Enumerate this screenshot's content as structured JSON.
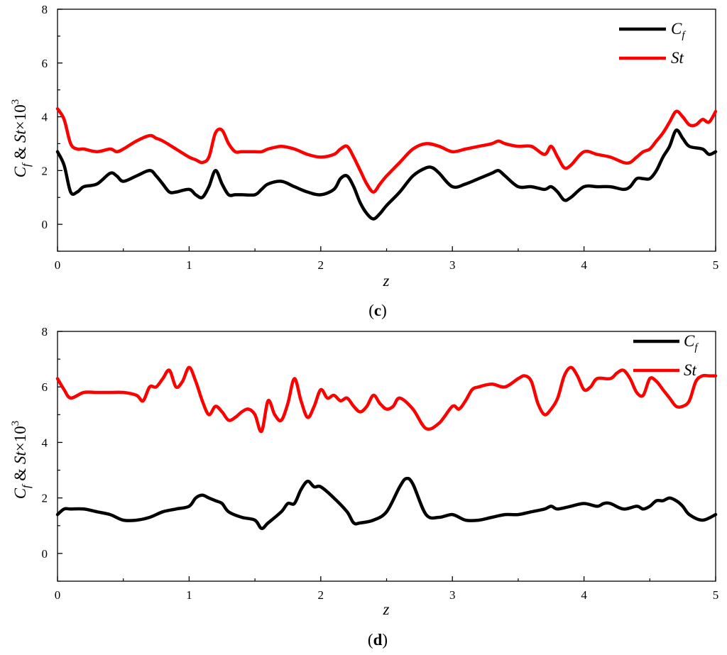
{
  "chart_data": [
    {
      "type": "line",
      "panel_label": {
        "open": "(",
        "letter": "c",
        "close": ")"
      },
      "xlabel": "z",
      "ylabel": {
        "a": "C",
        "a_sub": "f",
        "amp": " & ",
        "b": "St",
        "times": "×10",
        "exp": "3"
      },
      "xlim": [
        0,
        5
      ],
      "ylim": [
        -1,
        8
      ],
      "xticks": [
        0,
        1,
        2,
        3,
        4,
        5
      ],
      "yticks": [
        0,
        2,
        4,
        6,
        8
      ],
      "legend": {
        "placement": "top-right",
        "entries": [
          {
            "base": "C",
            "sub": "f",
            "color": "#000000"
          },
          {
            "base": "St",
            "sub": "",
            "color": "#ff0000"
          }
        ]
      },
      "series": [
        {
          "color": "#000000",
          "x": [
            0,
            0.05,
            0.1,
            0.15,
            0.2,
            0.3,
            0.4,
            0.45,
            0.5,
            0.6,
            0.7,
            0.75,
            0.8,
            0.85,
            0.9,
            1.0,
            1.05,
            1.1,
            1.15,
            1.2,
            1.25,
            1.3,
            1.35,
            1.4,
            1.5,
            1.55,
            1.6,
            1.7,
            1.8,
            1.9,
            2.0,
            2.1,
            2.15,
            2.2,
            2.25,
            2.3,
            2.35,
            2.4,
            2.45,
            2.5,
            2.6,
            2.7,
            2.8,
            2.85,
            2.9,
            3.0,
            3.1,
            3.2,
            3.3,
            3.35,
            3.4,
            3.5,
            3.6,
            3.7,
            3.75,
            3.8,
            3.85,
            3.9,
            4.0,
            4.1,
            4.2,
            4.3,
            4.35,
            4.4,
            4.45,
            4.5,
            4.55,
            4.6,
            4.65,
            4.7,
            4.75,
            4.8,
            4.9,
            4.95,
            5.0
          ],
          "y": [
            2.7,
            2.2,
            1.2,
            1.2,
            1.4,
            1.5,
            1.9,
            1.8,
            1.6,
            1.8,
            2.0,
            1.8,
            1.5,
            1.2,
            1.2,
            1.3,
            1.1,
            1.0,
            1.4,
            2.0,
            1.5,
            1.1,
            1.1,
            1.1,
            1.1,
            1.3,
            1.5,
            1.6,
            1.4,
            1.2,
            1.1,
            1.3,
            1.7,
            1.8,
            1.4,
            0.8,
            0.4,
            0.2,
            0.4,
            0.7,
            1.2,
            1.8,
            2.1,
            2.1,
            1.9,
            1.4,
            1.5,
            1.7,
            1.9,
            2.0,
            1.8,
            1.4,
            1.4,
            1.3,
            1.4,
            1.2,
            0.9,
            1.0,
            1.4,
            1.4,
            1.4,
            1.3,
            1.4,
            1.7,
            1.7,
            1.7,
            2.0,
            2.5,
            2.9,
            3.5,
            3.2,
            2.9,
            2.8,
            2.6,
            2.7
          ]
        },
        {
          "color": "#ff0000",
          "x": [
            0,
            0.05,
            0.1,
            0.15,
            0.2,
            0.3,
            0.4,
            0.45,
            0.5,
            0.6,
            0.7,
            0.75,
            0.8,
            0.9,
            1.0,
            1.05,
            1.1,
            1.15,
            1.2,
            1.25,
            1.3,
            1.35,
            1.4,
            1.5,
            1.55,
            1.6,
            1.7,
            1.8,
            1.9,
            2.0,
            2.1,
            2.15,
            2.2,
            2.25,
            2.3,
            2.35,
            2.4,
            2.45,
            2.5,
            2.6,
            2.7,
            2.8,
            2.9,
            3.0,
            3.1,
            3.2,
            3.3,
            3.35,
            3.4,
            3.5,
            3.6,
            3.7,
            3.75,
            3.8,
            3.85,
            3.9,
            4.0,
            4.1,
            4.2,
            4.3,
            4.35,
            4.4,
            4.45,
            4.5,
            4.55,
            4.6,
            4.65,
            4.7,
            4.75,
            4.8,
            4.85,
            4.9,
            4.95,
            5.0
          ],
          "y": [
            4.3,
            3.9,
            3.0,
            2.8,
            2.8,
            2.7,
            2.8,
            2.7,
            2.8,
            3.1,
            3.3,
            3.2,
            3.1,
            2.8,
            2.5,
            2.4,
            2.3,
            2.5,
            3.4,
            3.5,
            3.0,
            2.7,
            2.7,
            2.7,
            2.7,
            2.8,
            2.9,
            2.8,
            2.6,
            2.5,
            2.6,
            2.8,
            2.9,
            2.5,
            2.0,
            1.5,
            1.2,
            1.5,
            1.8,
            2.3,
            2.8,
            3.0,
            2.9,
            2.7,
            2.8,
            2.9,
            3.0,
            3.1,
            3.0,
            2.9,
            2.9,
            2.6,
            2.9,
            2.5,
            2.1,
            2.2,
            2.7,
            2.6,
            2.5,
            2.3,
            2.3,
            2.5,
            2.7,
            2.8,
            3.1,
            3.4,
            3.8,
            4.2,
            4.0,
            3.7,
            3.7,
            3.9,
            3.8,
            4.2
          ]
        }
      ]
    },
    {
      "type": "line",
      "panel_label": {
        "open": "(",
        "letter": "d",
        "close": ")"
      },
      "xlabel": "z",
      "ylabel": {
        "a": "C",
        "a_sub": "f",
        "amp": " & ",
        "b": "St",
        "times": "×10",
        "exp": "3"
      },
      "xlim": [
        0,
        5
      ],
      "ylim": [
        -1,
        8
      ],
      "xticks": [
        0,
        1,
        2,
        3,
        4,
        5
      ],
      "yticks": [
        0,
        2,
        4,
        6,
        8
      ],
      "legend": {
        "placement": "top-right",
        "entries": [
          {
            "base": "C",
            "sub": "f",
            "color": "#000000"
          },
          {
            "base": "St",
            "sub": "",
            "color": "#ff0000"
          }
        ]
      },
      "series": [
        {
          "color": "#000000",
          "x": [
            0,
            0.05,
            0.1,
            0.2,
            0.3,
            0.4,
            0.5,
            0.6,
            0.7,
            0.8,
            0.9,
            1.0,
            1.05,
            1.1,
            1.15,
            1.2,
            1.25,
            1.3,
            1.4,
            1.5,
            1.55,
            1.6,
            1.7,
            1.75,
            1.8,
            1.85,
            1.9,
            1.95,
            2.0,
            2.1,
            2.2,
            2.25,
            2.3,
            2.4,
            2.5,
            2.6,
            2.65,
            2.7,
            2.8,
            2.9,
            3.0,
            3.1,
            3.2,
            3.3,
            3.4,
            3.5,
            3.6,
            3.7,
            3.75,
            3.8,
            3.9,
            4.0,
            4.1,
            4.15,
            4.2,
            4.3,
            4.4,
            4.45,
            4.5,
            4.55,
            4.6,
            4.65,
            4.7,
            4.75,
            4.8,
            4.9,
            5.0
          ],
          "y": [
            1.4,
            1.6,
            1.6,
            1.6,
            1.5,
            1.4,
            1.2,
            1.2,
            1.3,
            1.5,
            1.6,
            1.7,
            2.0,
            2.1,
            2.0,
            1.9,
            1.8,
            1.5,
            1.3,
            1.2,
            0.9,
            1.1,
            1.5,
            1.8,
            1.8,
            2.3,
            2.6,
            2.4,
            2.4,
            2.0,
            1.5,
            1.1,
            1.1,
            1.2,
            1.5,
            2.4,
            2.7,
            2.5,
            1.4,
            1.3,
            1.4,
            1.2,
            1.2,
            1.3,
            1.4,
            1.4,
            1.5,
            1.6,
            1.7,
            1.6,
            1.7,
            1.8,
            1.7,
            1.8,
            1.8,
            1.6,
            1.7,
            1.6,
            1.7,
            1.9,
            1.9,
            2.0,
            1.9,
            1.7,
            1.4,
            1.2,
            1.4
          ]
        },
        {
          "color": "#ff0000",
          "x": [
            0,
            0.05,
            0.1,
            0.2,
            0.3,
            0.4,
            0.5,
            0.6,
            0.65,
            0.7,
            0.75,
            0.8,
            0.85,
            0.9,
            0.95,
            1.0,
            1.05,
            1.1,
            1.15,
            1.2,
            1.25,
            1.3,
            1.35,
            1.4,
            1.45,
            1.5,
            1.55,
            1.6,
            1.65,
            1.7,
            1.75,
            1.8,
            1.85,
            1.9,
            1.95,
            2.0,
            2.05,
            2.1,
            2.15,
            2.2,
            2.25,
            2.3,
            2.35,
            2.4,
            2.45,
            2.5,
            2.55,
            2.6,
            2.7,
            2.8,
            2.9,
            3.0,
            3.05,
            3.1,
            3.15,
            3.2,
            3.3,
            3.4,
            3.5,
            3.55,
            3.6,
            3.65,
            3.7,
            3.75,
            3.8,
            3.85,
            3.9,
            3.95,
            4.0,
            4.05,
            4.1,
            4.2,
            4.25,
            4.3,
            4.35,
            4.4,
            4.45,
            4.5,
            4.55,
            4.6,
            4.65,
            4.7,
            4.75,
            4.8,
            4.85,
            4.9,
            4.95,
            5.0
          ],
          "y": [
            6.3,
            5.9,
            5.6,
            5.8,
            5.8,
            5.8,
            5.8,
            5.7,
            5.5,
            6.0,
            6.0,
            6.3,
            6.6,
            6.0,
            6.2,
            6.7,
            6.2,
            5.5,
            5.0,
            5.3,
            5.1,
            4.8,
            4.9,
            5.1,
            5.2,
            5.0,
            4.4,
            5.5,
            5.0,
            4.8,
            5.4,
            6.3,
            5.5,
            4.9,
            5.3,
            5.9,
            5.6,
            5.7,
            5.5,
            5.6,
            5.3,
            5.1,
            5.3,
            5.7,
            5.4,
            5.2,
            5.3,
            5.6,
            5.2,
            4.5,
            4.7,
            5.3,
            5.2,
            5.5,
            5.9,
            6.0,
            6.1,
            6.0,
            6.3,
            6.4,
            6.2,
            5.4,
            5.0,
            5.2,
            5.6,
            6.4,
            6.7,
            6.4,
            5.9,
            6.0,
            6.3,
            6.3,
            6.5,
            6.6,
            6.3,
            5.8,
            5.7,
            6.3,
            6.2,
            5.9,
            5.6,
            5.3,
            5.3,
            5.5,
            6.2,
            6.4,
            6.4,
            6.4
          ]
        }
      ]
    }
  ]
}
